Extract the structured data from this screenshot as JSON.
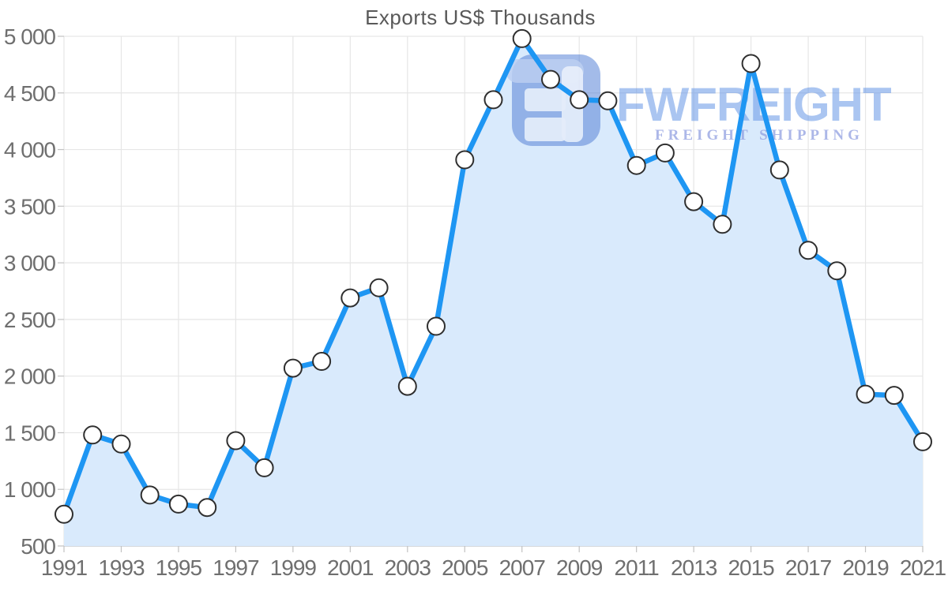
{
  "chart_data": {
    "type": "area",
    "title": "Exports US$ Thousands",
    "x": [
      1991,
      1992,
      1993,
      1994,
      1995,
      1996,
      1997,
      1998,
      1999,
      2000,
      2001,
      2002,
      2003,
      2004,
      2005,
      2006,
      2007,
      2008,
      2009,
      2010,
      2011,
      2012,
      2013,
      2014,
      2015,
      2016,
      2017,
      2018,
      2019,
      2020,
      2021
    ],
    "values": [
      780,
      1480,
      1400,
      950,
      870,
      840,
      1430,
      1190,
      2070,
      2130,
      2690,
      2780,
      1910,
      2440,
      3910,
      4440,
      4980,
      4620,
      4440,
      4430,
      3860,
      3970,
      3540,
      3340,
      4760,
      3820,
      3110,
      2930,
      1840,
      1830,
      1420
    ],
    "xlabel": "",
    "ylabel": "",
    "ylim": [
      500,
      5000
    ],
    "y_tick_step": 500,
    "y_tick_labels": [
      "500",
      "1 000",
      "1 500",
      "2 000",
      "2 500",
      "3 000",
      "3 500",
      "4 000",
      "4 500",
      "5 000"
    ],
    "x_tick_every": 2,
    "x_tick_labels": [
      "1991",
      "1993",
      "1995",
      "1997",
      "1999",
      "2001",
      "2003",
      "2005",
      "2007",
      "2009",
      "2011",
      "2013",
      "2015",
      "2017",
      "2019",
      "2021"
    ],
    "grid": true,
    "legend": null,
    "marker": "circle",
    "colors": {
      "line": "#1e96f3",
      "area": "#d9eafc",
      "marker_fill": "#ffffff",
      "marker_stroke": "#2f2f2f",
      "grid": "#e6e6e6",
      "axis": "#c7ccd1",
      "tick": "#c2c2c2",
      "tick_label": "#6f6f6f",
      "title": "#595959"
    }
  },
  "watermark": {
    "brand": "FWFREIGHT",
    "tagline": "FREIGHT SHIPPING",
    "colors": {
      "tile": "#5e87d8",
      "tile_accent": "#b9cdf1",
      "glyph": "#e6eefb",
      "brand_text": "#6b9ae6",
      "tagline_text": "#8f9ee0"
    }
  }
}
